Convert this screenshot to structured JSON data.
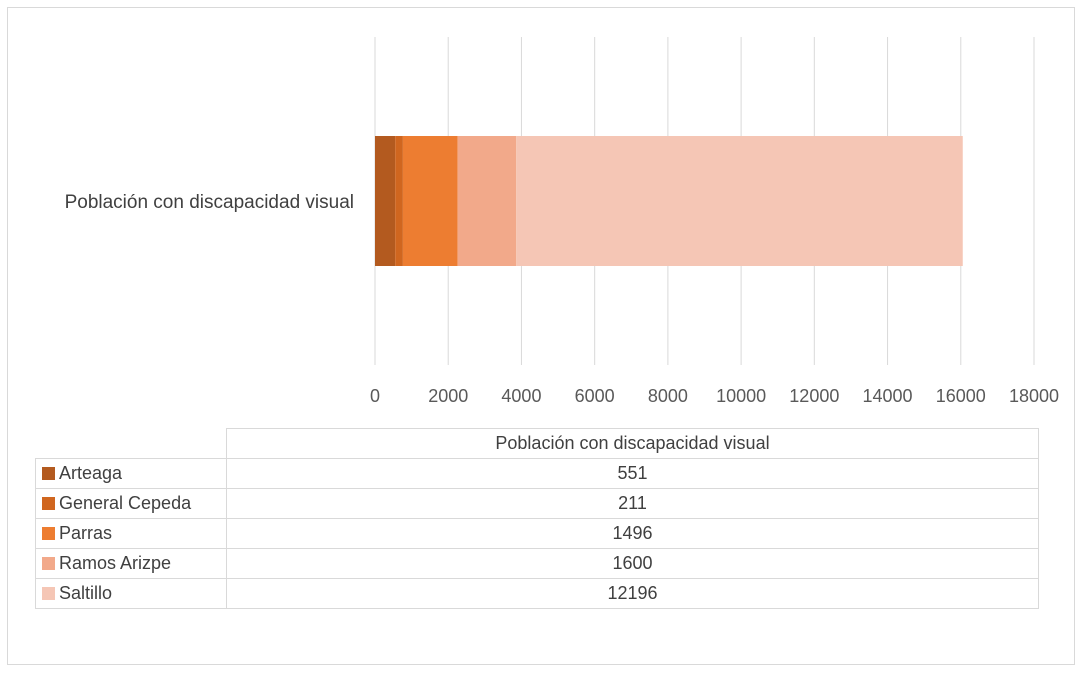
{
  "chart_data": {
    "type": "bar",
    "orientation": "horizontal",
    "stacked": true,
    "categories": [
      "Población con discapacidad visual"
    ],
    "series": [
      {
        "name": "Arteaga",
        "values": [
          551
        ],
        "color": "#B35A1F"
      },
      {
        "name": "General Cepeda",
        "values": [
          211
        ],
        "color": "#D0661F"
      },
      {
        "name": "Parras",
        "values": [
          1496
        ],
        "color": "#ED7D31"
      },
      {
        "name": "Ramos Arizpe",
        "values": [
          1600
        ],
        "color": "#F2A98A"
      },
      {
        "name": "Saltillo",
        "values": [
          12196
        ],
        "color": "#F5C6B5"
      }
    ],
    "xlim": [
      0,
      18000
    ],
    "xticks": [
      "0",
      "2000",
      "4000",
      "6000",
      "8000",
      "10000",
      "12000",
      "14000",
      "16000",
      "18000"
    ],
    "grid": true,
    "legend": "data-table",
    "title": "",
    "xlabel": "",
    "ylabel": ""
  },
  "table": {
    "header": "Población con discapacidad visual",
    "rows": [
      {
        "label": "Arteaga",
        "value": "551"
      },
      {
        "label": "General Cepeda",
        "value": "211"
      },
      {
        "label": "Parras",
        "value": "1496"
      },
      {
        "label": "Ramos Arizpe",
        "value": "1600"
      },
      {
        "label": "Saltillo",
        "value": "12196"
      }
    ]
  }
}
